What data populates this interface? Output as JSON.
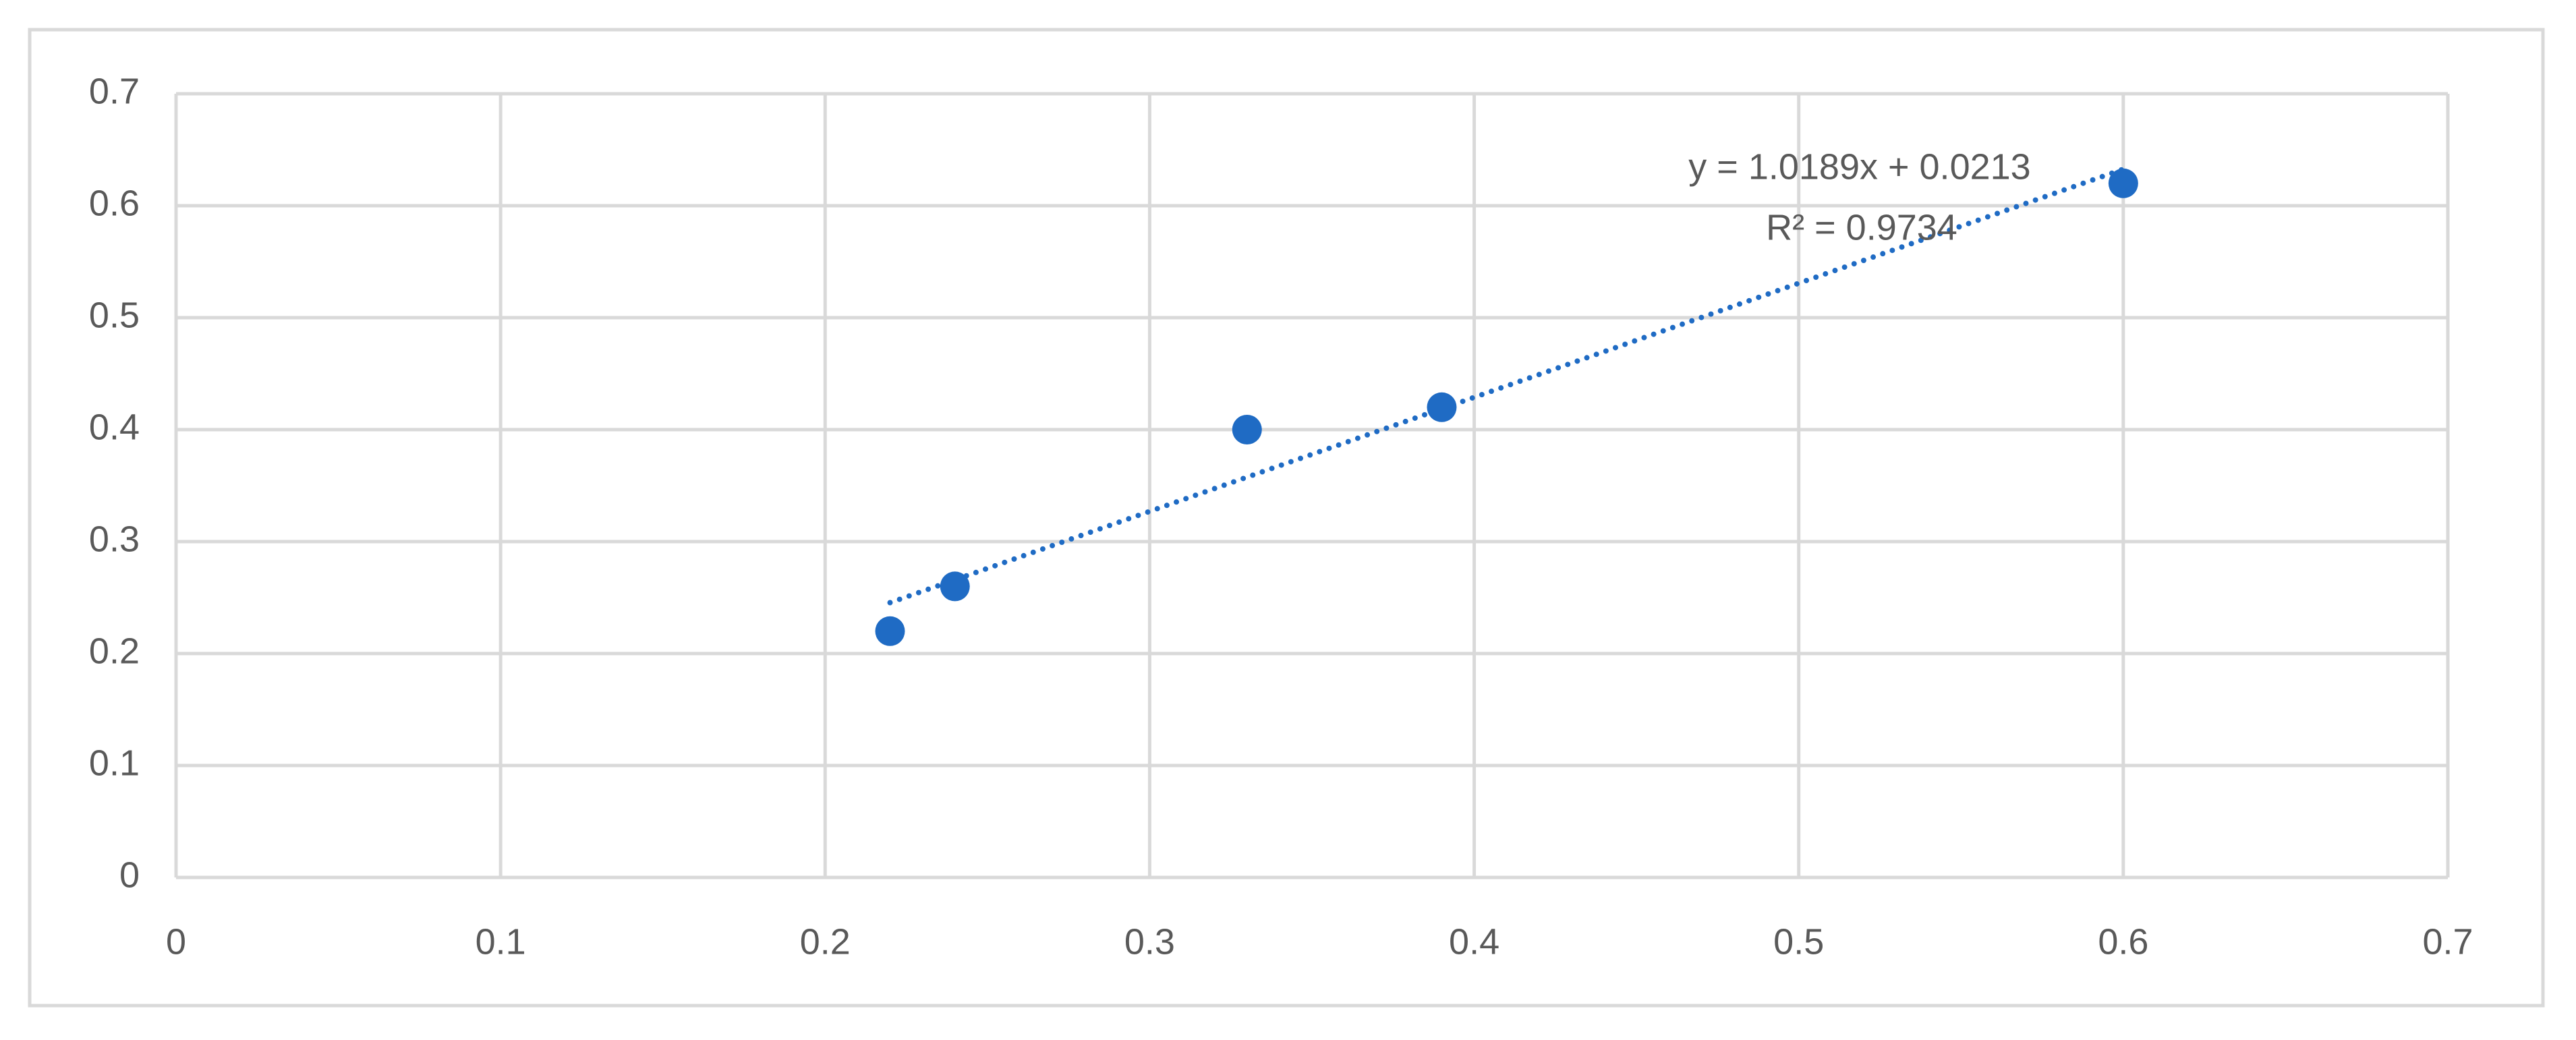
{
  "chart_data": {
    "type": "scatter",
    "x": [
      0.22,
      0.24,
      0.33,
      0.39,
      0.6
    ],
    "series": [
      {
        "color": "#1f6bc4",
        "values": [
          0.22,
          0.26,
          0.4,
          0.42,
          0.62
        ]
      }
    ],
    "xlim": [
      0,
      0.7
    ],
    "xticks": [
      0,
      0.1,
      0.2,
      0.3,
      0.4,
      0.5,
      0.6,
      0.7
    ],
    "ylim": [
      0,
      0.7
    ],
    "yticks": [
      0,
      0.1,
      0.2,
      0.3,
      0.4,
      0.5,
      0.6,
      0.7
    ],
    "grid": true,
    "trendline": {
      "slope": 1.0189,
      "intercept": 0.0213,
      "equation": "y = 1.0189x + 0.0213",
      "r2_label": "R² = 0.9734",
      "color": "#1f6bc4",
      "style": "dotted"
    }
  }
}
